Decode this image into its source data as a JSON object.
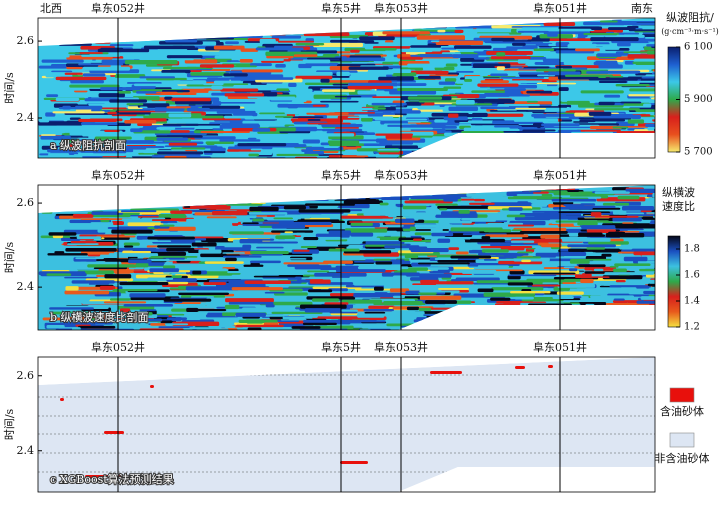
{
  "chart_data": [
    {
      "type": "heatmap",
      "title": "a 纵波阻抗剖面",
      "ylabel": "时间/s",
      "direction_labels": [
        "北西",
        "南东"
      ],
      "wells": [
        "阜东052井",
        "阜东5井",
        "阜东053井",
        "阜东051井"
      ],
      "ylim": [
        2.296,
        2.66
      ],
      "yticks": [
        2.4,
        2.6
      ],
      "colorbar_label": [
        "纵波阻抗/",
        "(g·cm⁻³·m·s⁻¹)"
      ],
      "clim": [
        5700,
        6100
      ],
      "cticks": [
        {
          "value": 5700,
          "label": "5 700"
        },
        {
          "value": 5900,
          "label": "5 900"
        },
        {
          "value": 6100,
          "label": "6 100"
        }
      ],
      "colormap": [
        "#f6ea6e",
        "#e8501e",
        "#d8201c",
        "#2eaa4a",
        "#3cc8e8",
        "#1e5fd0",
        "#0a1f6e"
      ]
    },
    {
      "type": "heatmap",
      "title": "b 纵横波速度比剖面",
      "ylabel": "时间/s",
      "wells": [
        "阜东052井",
        "阜东5井",
        "阜东053井",
        "阜东051井"
      ],
      "ylim": [
        2.298,
        2.643
      ],
      "yticks": [
        2.4,
        2.6
      ],
      "colorbar_label": [
        "纵横波",
        "速度比"
      ],
      "clim": [
        1.2,
        1.9
      ],
      "cticks": [
        1.2,
        1.4,
        1.6,
        1.8
      ],
      "colormap": [
        "#f5e040",
        "#e85a1c",
        "#d8201c",
        "#2eaa4a",
        "#3cc0e0",
        "#1a4fc0",
        "#050818"
      ]
    },
    {
      "type": "classification",
      "title": "c XGBoost算法预测结果",
      "ylabel": "时间/s",
      "wells": [
        "阜东052井",
        "阜东5井",
        "阜东053井",
        "阜东051井"
      ],
      "ylim": [
        2.29,
        2.65
      ],
      "yticks": [
        2.4,
        2.6
      ],
      "classes": [
        {
          "name": "含油砂体",
          "color": "#e8100c"
        },
        {
          "name": "非含油砂体",
          "color": "#dde6f3"
        }
      ]
    }
  ]
}
